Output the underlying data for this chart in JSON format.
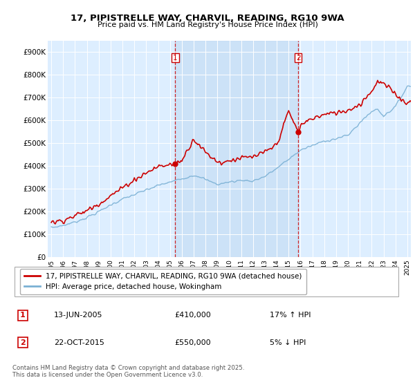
{
  "title": "17, PIPISTRELLE WAY, CHARVIL, READING, RG10 9WA",
  "subtitle": "Price paid vs. HM Land Registry's House Price Index (HPI)",
  "plot_bg_color": "#ddeeff",
  "shade_color": "#c5ddf5",
  "red_color": "#cc0000",
  "blue_color": "#7ab0d4",
  "marker1_year": 2005.45,
  "marker1_value": 410000,
  "marker2_year": 2015.81,
  "marker2_value": 550000,
  "ylim_min": 0,
  "ylim_max": 950000,
  "ytick_values": [
    0,
    100000,
    200000,
    300000,
    400000,
    500000,
    600000,
    700000,
    800000,
    900000
  ],
  "ytick_labels": [
    "£0",
    "£100K",
    "£200K",
    "£300K",
    "£400K",
    "£500K",
    "£600K",
    "£700K",
    "£800K",
    "£900K"
  ],
  "legend_label_red": "17, PIPISTRELLE WAY, CHARVIL, READING, RG10 9WA (detached house)",
  "legend_label_blue": "HPI: Average price, detached house, Wokingham",
  "annotation1_date": "13-JUN-2005",
  "annotation1_price": "£410,000",
  "annotation1_hpi": "17% ↑ HPI",
  "annotation2_date": "22-OCT-2015",
  "annotation2_price": "£550,000",
  "annotation2_hpi": "5% ↓ HPI",
  "footer": "Contains HM Land Registry data © Crown copyright and database right 2025.\nThis data is licensed under the Open Government Licence v3.0."
}
